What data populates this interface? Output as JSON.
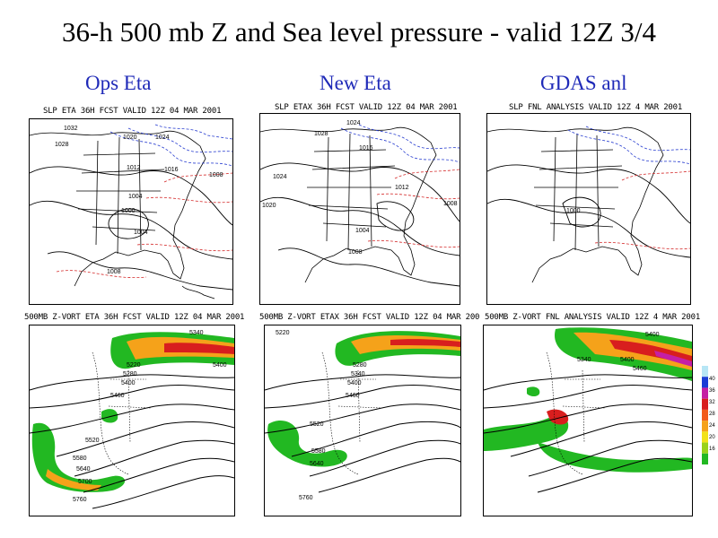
{
  "title": "36-h 500 mb Z and Sea level pressure - valid 12Z 3/4",
  "columns": [
    {
      "label": "Ops Eta"
    },
    {
      "label": "New Eta"
    },
    {
      "label": "GDAS anl"
    }
  ],
  "slp_panels": [
    {
      "title": "SLP ETA 36H FCST VALID 12Z 04 MAR 2001",
      "isobar_labels": [
        "1032",
        "1028",
        "1024",
        "1020",
        "1016",
        "1012",
        "1008",
        "1004",
        "1000",
        "1004",
        "1008"
      ]
    },
    {
      "title": "SLP ETAX 36H FCST VALID 12Z 04 MAR 2001",
      "isobar_labels": [
        "1024",
        "1028",
        "1024",
        "1020",
        "1016",
        "1012",
        "1008",
        "1004",
        "1008"
      ]
    },
    {
      "title": "SLP FNL ANALYSIS VALID 12Z 4 MAR 2001",
      "isobar_labels": [
        "1000"
      ]
    }
  ],
  "vort_panels": [
    {
      "title": "500MB Z-VORT ETA 36H FCST VALID 12Z 04 MAR 2001",
      "height_labels": [
        "5340",
        "5220",
        "5280",
        "5400",
        "5400",
        "5460",
        "5520",
        "5580",
        "5640",
        "5700",
        "5760"
      ]
    },
    {
      "title": "500MB Z-VORT ETAX 36H FCST VALID 12Z 04 MAR 200",
      "height_labels": [
        "5220",
        "5280",
        "5340",
        "5400",
        "5460",
        "5520",
        "5580",
        "5640",
        "5760"
      ]
    },
    {
      "title": "500MB Z-VORT FNL ANALYSIS VALID 12Z 4 MAR 2001",
      "height_labels": [
        "5400",
        "5340",
        "5400",
        "5460"
      ]
    }
  ],
  "colorbar": {
    "ticks": [
      "40",
      "36",
      "32",
      "28",
      "24",
      "20",
      "16"
    ],
    "colors": [
      "#b7e6f5",
      "#1a3dd6",
      "#c51fa4",
      "#d81e1e",
      "#f25a1a",
      "#f5a21a",
      "#f2e21a",
      "#9ad21a",
      "#22b822"
    ]
  }
}
